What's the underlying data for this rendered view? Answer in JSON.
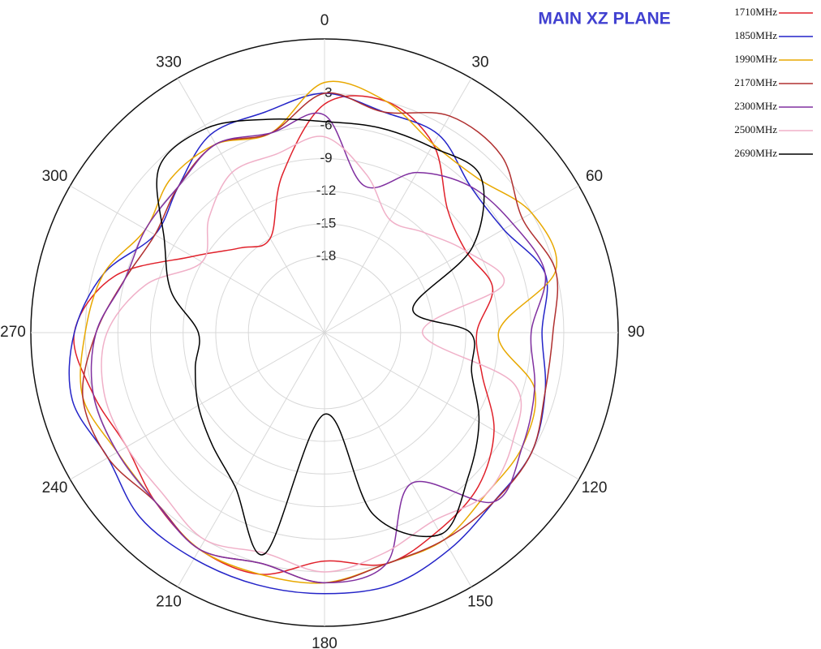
{
  "chart_data": {
    "type": "polar",
    "title": "MAIN XZ PLANE",
    "theta": [
      0,
      15,
      30,
      45,
      60,
      75,
      90,
      105,
      120,
      135,
      150,
      165,
      180,
      195,
      210,
      225,
      240,
      255,
      270,
      285,
      300,
      315,
      330,
      345
    ],
    "thetaticks": [
      0,
      30,
      60,
      90,
      120,
      150,
      180,
      210,
      240,
      270,
      300,
      330
    ],
    "rlim": [
      -25,
      2
    ],
    "rticks": [
      -3,
      -6,
      -9,
      -12,
      -15,
      -18
    ],
    "direction": "clockwise",
    "zero_location": "top",
    "grid": true,
    "legend": "upper right",
    "series": [
      {
        "name": "1710MHz",
        "color": "#e0202a",
        "values": [
          -4,
          -3,
          -5,
          -9,
          -10,
          -9,
          -11,
          -10,
          -7,
          -5,
          -4,
          -3,
          -4,
          -2,
          -2,
          -3,
          -4,
          -3,
          -2,
          -5,
          -11,
          -14,
          -15,
          -10
        ]
      },
      {
        "name": "1850MHz",
        "color": "#2424c8",
        "values": [
          -3,
          -4,
          -4,
          -6,
          -6,
          -4,
          -5,
          -4,
          -3,
          -3,
          -2,
          -1,
          -1,
          -1,
          -1,
          -1,
          -2,
          -1,
          -2,
          -4,
          -7,
          -6,
          -4,
          -4
        ]
      },
      {
        "name": "1990MHz",
        "color": "#e8a800",
        "values": [
          -2,
          -3,
          -5,
          -5,
          -3,
          -3,
          -9,
          -5,
          -4,
          -4,
          -3,
          -3,
          -2,
          -2,
          -2,
          -3,
          -3,
          -2,
          -3,
          -4,
          -6,
          -5,
          -5,
          -6
        ]
      },
      {
        "name": "2170MHz",
        "color": "#b03030",
        "values": [
          -3,
          -4,
          -2,
          -2,
          -4,
          -3,
          -4,
          -4,
          -3,
          -3,
          -3,
          -3,
          -2,
          -3,
          -2,
          -3,
          -2,
          -2,
          -4,
          -6,
          -7,
          -6,
          -5,
          -6
        ]
      },
      {
        "name": "2300MHz",
        "color": "#8030a0",
        "values": [
          -5,
          -11,
          -8,
          -6,
          -5,
          -4,
          -6,
          -5,
          -4,
          -3,
          -9,
          -3,
          -2,
          -3,
          -2,
          -3,
          -3,
          -3,
          -4,
          -6,
          -6,
          -6,
          -5,
          -6
        ]
      },
      {
        "name": "2500MHz",
        "color": "#f0b0c8",
        "values": [
          -7,
          -10,
          -13,
          -12,
          -10,
          -8,
          -16,
          -7,
          -5,
          -4,
          -5,
          -4,
          -3,
          -4,
          -3,
          -4,
          -4,
          -4,
          -5,
          -8,
          -12,
          -10,
          -8,
          -8
        ]
      },
      {
        "name": "2690MHz",
        "color": "#000000",
        "values": [
          -5.6,
          -5.5,
          -5.3,
          -4.7,
          -9.3,
          -16.6,
          -11.6,
          -11,
          -8.6,
          -6.3,
          -3.6,
          -7.7,
          -17.5,
          -4,
          -8.6,
          -10.4,
          -11.6,
          -12.7,
          -13.4,
          -10.4,
          -8,
          -3.5,
          -3.3,
          -4.7
        ]
      }
    ]
  }
}
